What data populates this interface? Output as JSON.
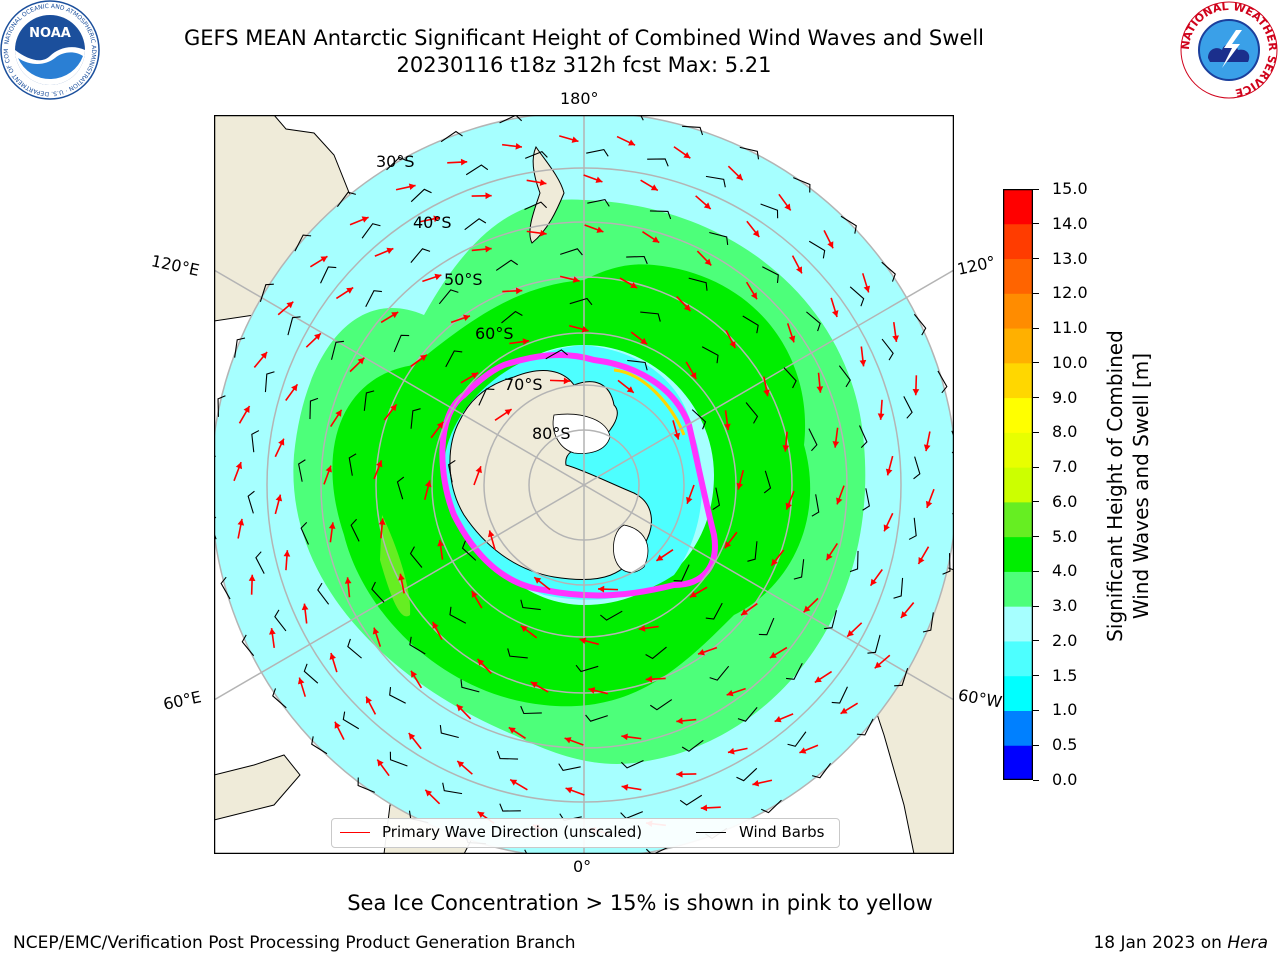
{
  "title": {
    "line1": "GEFS MEAN Antarctic Significant Height of Combined Wind Waves and Swell",
    "line2": "20230116 t18z 312h fcst   Max: 5.21"
  },
  "logos": {
    "left": {
      "name": "noaa-logo",
      "text": "NOAA",
      "ring_text": "NATIONAL OCEANIC AND ATMOSPHERIC ADMINISTRATION · U.S. DEPARTMENT OF COMMERCE"
    },
    "right": {
      "name": "nws-logo",
      "ring_text": "NATIONAL WEATHER SERVICE"
    }
  },
  "map": {
    "projection": "south-polar-stereographic",
    "longitude_labels": [
      "180°",
      "120°E",
      "120°",
      "60°E",
      "60°W",
      "0°"
    ],
    "latitude_labels": [
      "30°S",
      "40°S",
      "50°S",
      "60°S",
      "70°S",
      "80°S"
    ],
    "colors": {
      "land": "#efebd9",
      "ocean_light": "#a6ffff",
      "ocean_cyan": "#4dffff",
      "wave_3_4": "#4dff7a",
      "wave_4_5": "#00ee00",
      "wave_5_6": "#66ee22",
      "grid": "#b4b4b4",
      "wave_dir": "#ff0000",
      "barb": "#000000",
      "ice_edge": "#ff33ff"
    }
  },
  "legend": {
    "wave_label": "Primary Wave Direction (unscaled)",
    "barb_label": "Wind Barbs"
  },
  "colorbar": {
    "label_line1": "Significant Height of Combined",
    "label_line2": "Wind Waves and Swell [m]",
    "ticks": [
      "0.0",
      "0.5",
      "1.0",
      "1.5",
      "2.0",
      "3.0",
      "4.0",
      "5.0",
      "6.0",
      "7.0",
      "8.0",
      "9.0",
      "10.0",
      "11.0",
      "12.0",
      "13.0",
      "14.0",
      "15.0"
    ],
    "colors": [
      "#0000ff",
      "#0080ff",
      "#00ffff",
      "#4dffff",
      "#a6ffff",
      "#4dff7a",
      "#00ee00",
      "#66ee22",
      "#ccff00",
      "#e8ff00",
      "#ffff00",
      "#ffd700",
      "#ffb000",
      "#ff8c00",
      "#ff6400",
      "#ff3c00",
      "#ff0000"
    ]
  },
  "ice_note": "Sea Ice Concentration > 15% is shown in pink to yellow",
  "footer": {
    "left": "NCEP/EMC/Verification Post Processing Product Generation Branch",
    "date": "18 Jan 2023 on ",
    "machine": "Hera"
  }
}
